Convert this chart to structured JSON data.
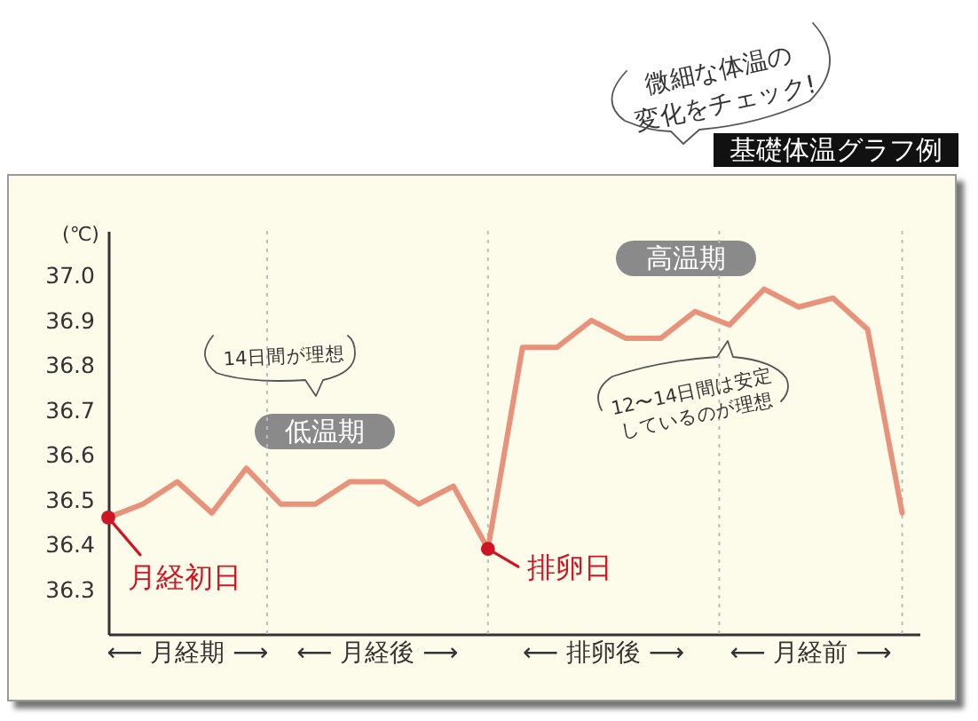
{
  "chart_data": {
    "type": "line",
    "title": "基礎体温グラフ例",
    "subtitle": "微細な体温の\n変化をチェック!",
    "ylabel": "(℃)",
    "categories": [
      null,
      null,
      null,
      null,
      null,
      null,
      null,
      null,
      null,
      null,
      null,
      null,
      null,
      null,
      null,
      null,
      null,
      null,
      null,
      null,
      null,
      null,
      null,
      null
    ],
    "ylim": [
      36.2,
      37.1
    ],
    "yticks": [
      36.3,
      36.4,
      36.5,
      36.6,
      36.7,
      36.8,
      36.9,
      {
        "value": 37,
        "label": "37.0"
      }
    ],
    "series": [
      {
        "color": "#e8917b",
        "values": [
          36.46,
          36.49,
          36.54,
          36.47,
          36.57,
          36.49,
          36.49,
          36.54,
          36.54,
          36.49,
          36.53,
          36.39,
          36.84,
          36.84,
          36.9,
          36.86,
          36.86,
          36.92,
          36.89,
          36.97,
          36.93,
          36.95,
          36.88,
          36.47
        ]
      },
      {
        "type": "scatter",
        "color": "#cf1424",
        "values": [
          36.46,
          null,
          null,
          null,
          null,
          null,
          null,
          null,
          null,
          null,
          null,
          36.39,
          null,
          null,
          null,
          null,
          null,
          null,
          null,
          null,
          null,
          null,
          null,
          null
        ]
      }
    ],
    "annotations": [
      "月経初日",
      "排卵日",
      "低温期",
      "高温期",
      "14日間が理想",
      "12〜14日間は安定\nしているのが理想",
      "⟵ 月経期 ⟶",
      "⟵ 月経後 ⟶",
      "⟵ 排卵後 ⟶",
      "⟵ 月経前 ⟶"
    ]
  }
}
